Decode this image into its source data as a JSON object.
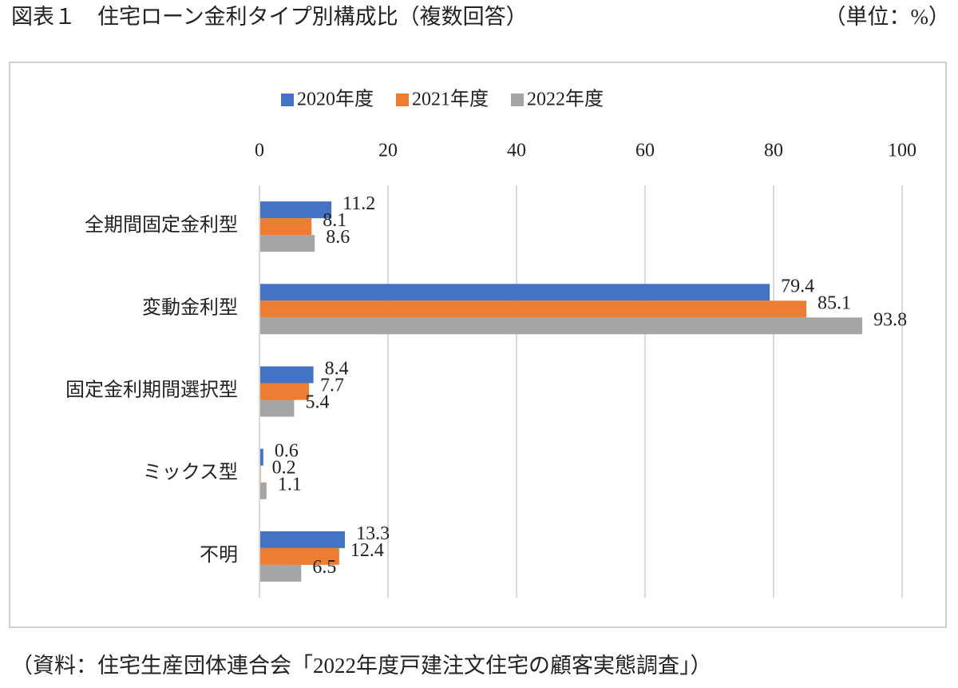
{
  "chart_data": {
    "type": "hbar",
    "title": "図表１　住宅ローン金利タイプ別構成比（複数回答）",
    "unit_note": "（単位：%）",
    "source": "（資料：住宅生産団体連合会「2022年度戸建注文住宅の顧客実態調査」）",
    "categories": [
      "全期間固定金利型",
      "変動金利型",
      "固定金利期間選択型",
      "ミックス型",
      "不明"
    ],
    "series": [
      {
        "name": "2020年度",
        "color": "#4472c4",
        "values": [
          11.2,
          79.4,
          8.4,
          0.6,
          13.3
        ]
      },
      {
        "name": "2021年度",
        "color": "#ed7d31",
        "values": [
          8.1,
          85.1,
          7.7,
          0.2,
          12.4
        ]
      },
      {
        "name": "2022年度",
        "color": "#a5a5a5",
        "values": [
          8.6,
          93.8,
          5.4,
          1.1,
          6.5
        ]
      }
    ],
    "xlim": [
      0,
      100
    ],
    "xticks": [
      0,
      20,
      40,
      60,
      80,
      100
    ],
    "grid": true,
    "legend": "top"
  }
}
